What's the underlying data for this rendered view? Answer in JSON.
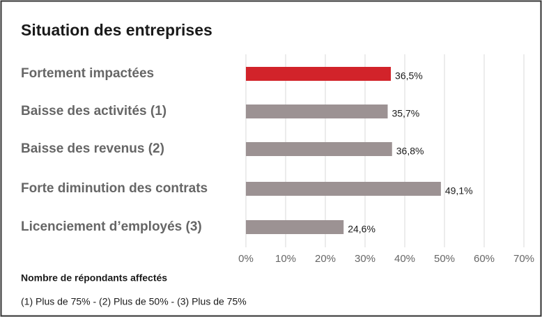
{
  "chart_data": {
    "type": "barh",
    "title": "Situation des entreprises",
    "categories": [
      "Fortement impactées",
      "Baisse des activités (1)",
      "Baisse des revenus (2)",
      "Forte diminution des contrats",
      "Licenciement d’employés (3)"
    ],
    "values": [
      36.5,
      35.7,
      36.8,
      49.1,
      24.6
    ],
    "value_labels": [
      "36,5%",
      "35,7%",
      "36,8%",
      "49,1%",
      "24,6%"
    ],
    "colors": [
      "#d2232a",
      "#9c9293",
      "#9c9293",
      "#9c9293",
      "#9c9293"
    ],
    "xlim": [
      0,
      70
    ],
    "xticks": [
      {
        "value": 0,
        "label": "0%"
      },
      {
        "value": 10,
        "label": "10%"
      },
      {
        "value": 20,
        "label": "20%"
      },
      {
        "value": 30,
        "label": "30%"
      },
      {
        "value": 40,
        "label": "40%"
      },
      {
        "value": 50,
        "label": "50%"
      },
      {
        "value": 60,
        "label": "60%"
      },
      {
        "value": 70,
        "label": "70%"
      }
    ],
    "grid": true,
    "footnote_title": "Nombre de répondants affectés",
    "footnote": "(1) Plus de 75% - (2) Plus de 50% - (3) Plus de 75%"
  }
}
